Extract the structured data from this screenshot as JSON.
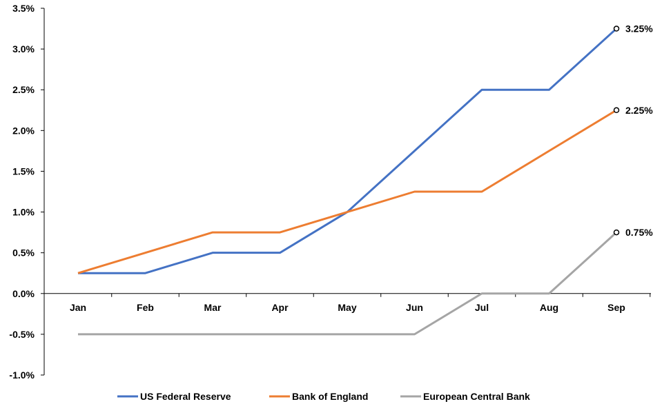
{
  "chart_data": {
    "type": "line",
    "title": "",
    "xlabel": "",
    "ylabel": "",
    "categories": [
      "Jan",
      "Feb",
      "Mar",
      "Apr",
      "May",
      "Jun",
      "Jul",
      "Aug",
      "Sep"
    ],
    "ylim": [
      -1.0,
      3.5
    ],
    "yticks": [
      "3.5%",
      "3.0%",
      "2.5%",
      "2.0%",
      "1.5%",
      "1.0%",
      "0.5%",
      "0.0%",
      "-0.5%",
      "-1.0%"
    ],
    "ytick_values": [
      3.5,
      3.0,
      2.5,
      2.0,
      1.5,
      1.0,
      0.5,
      0.0,
      -0.5,
      -1.0
    ],
    "grid": false,
    "legend_position": "bottom",
    "series": [
      {
        "name": "US Federal Reserve",
        "color": "#4472C4",
        "values": [
          0.25,
          0.25,
          0.5,
          0.5,
          1.0,
          1.75,
          2.5,
          2.5,
          3.25
        ],
        "end_label": "3.25%"
      },
      {
        "name": "Bank of England",
        "color": "#ED7D31",
        "values": [
          0.25,
          0.5,
          0.75,
          0.75,
          1.0,
          1.25,
          1.25,
          1.75,
          2.25
        ],
        "end_label": "2.25%"
      },
      {
        "name": "European Central Bank",
        "color": "#A5A5A5",
        "values": [
          -0.5,
          -0.5,
          -0.5,
          -0.5,
          -0.5,
          -0.5,
          0,
          0,
          0.75
        ],
        "end_label": "0.75%"
      }
    ]
  }
}
